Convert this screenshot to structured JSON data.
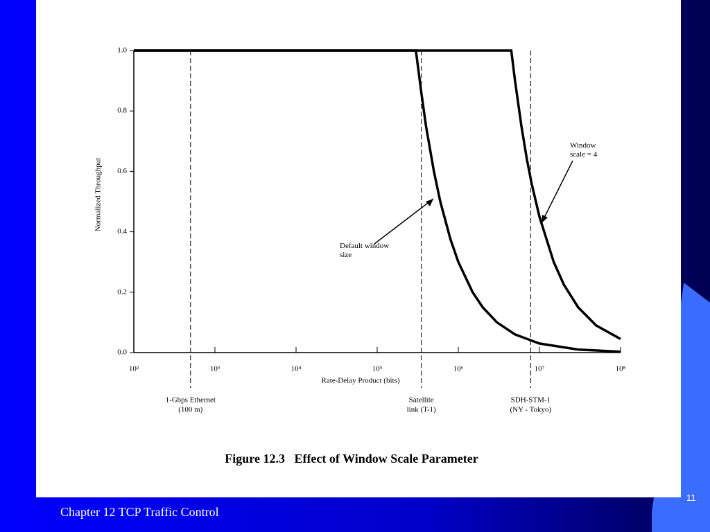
{
  "slide": {
    "footer": "Chapter 12 TCP Traffic Control",
    "page_number": "11"
  },
  "chart_data": {
    "type": "line",
    "title": "Figure 12.3   Effect of Window Scale Parameter",
    "x_label": "Rate-Delay Product (bits)",
    "y_label": "Normalized Throughput",
    "x_scale": "log",
    "xlim": [
      100,
      100000000
    ],
    "xticks": [
      {
        "value": 100,
        "label": "10²"
      },
      {
        "value": 1000,
        "label": "10³"
      },
      {
        "value": 10000,
        "label": "10⁴"
      },
      {
        "value": 100000,
        "label": "10⁵"
      },
      {
        "value": 1000000,
        "label": "10⁶"
      },
      {
        "value": 10000000,
        "label": "10⁷"
      },
      {
        "value": 100000000,
        "label": "10⁸"
      }
    ],
    "ylim": [
      0,
      1
    ],
    "yticks": [
      {
        "value": 0,
        "label": "0.0"
      },
      0.2,
      0.4,
      0.6,
      0.8,
      {
        "value": 1,
        "label": "1.0"
      }
    ],
    "series": [
      {
        "name": "Default window size",
        "color": "#000000",
        "x": [
          100,
          300000,
          350000,
          400000,
          500000,
          600000,
          800000,
          1000000,
          1500000,
          2000000,
          3000000,
          5000000,
          10000000,
          30000000,
          100000000
        ],
        "values": [
          1,
          1,
          0.86,
          0.75,
          0.6,
          0.5,
          0.375,
          0.3,
          0.2,
          0.15,
          0.1,
          0.06,
          0.03,
          0.01,
          0.003
        ]
      },
      {
        "name": "Window scale = 4",
        "color": "#000000",
        "x": [
          100,
          4500000,
          5000000,
          6000000,
          7000000,
          8000000,
          10000000,
          15000000,
          20000000,
          30000000,
          50000000,
          100000000
        ],
        "values": [
          1,
          1,
          0.9,
          0.75,
          0.64,
          0.56,
          0.45,
          0.3,
          0.225,
          0.15,
          0.09,
          0.045
        ]
      }
    ],
    "reference_lines": [
      {
        "x": 500,
        "label": [
          "1-Gbps Ethernet",
          "(100 m)"
        ]
      },
      {
        "x": 350000,
        "label": [
          "Satellite",
          "link (T-1)"
        ]
      },
      {
        "x": 7800000,
        "label": [
          "SDH-STM-1",
          "(NY - Tokyo)"
        ]
      }
    ]
  }
}
